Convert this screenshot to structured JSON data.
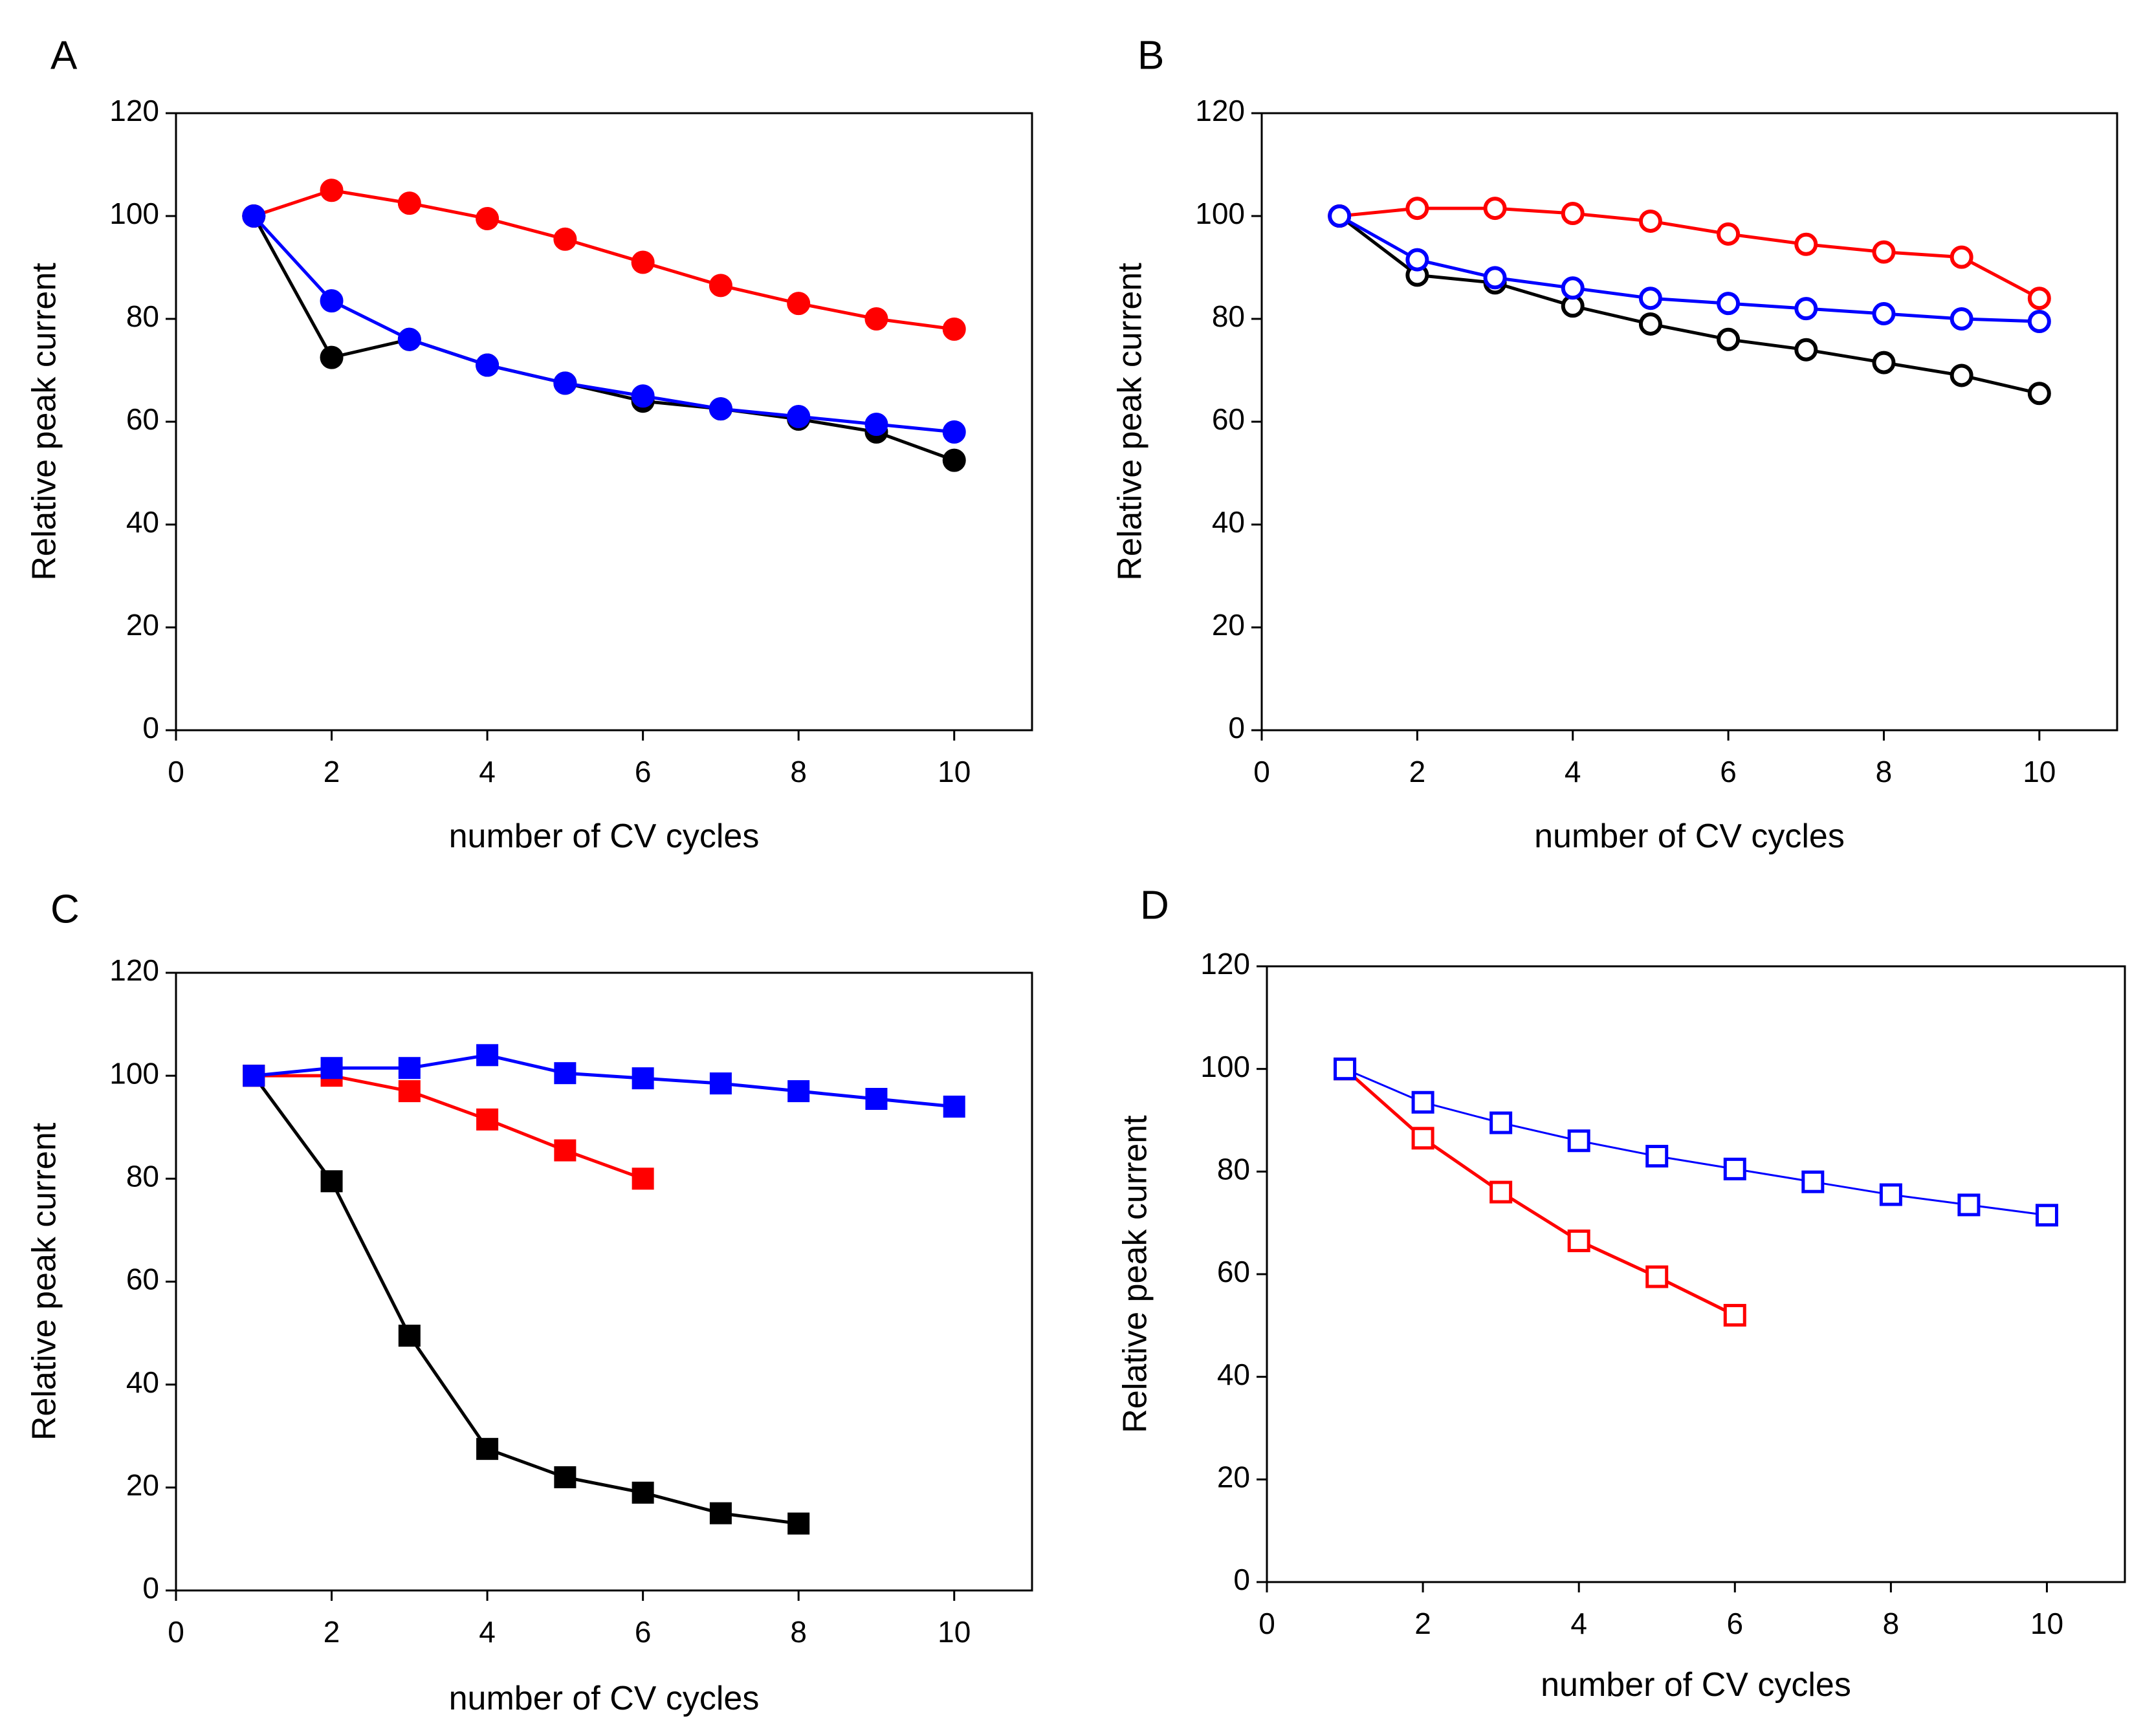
{
  "figure": {
    "panels": [
      "A",
      "B",
      "C",
      "D"
    ]
  },
  "chart_data": [
    {
      "panel": "A",
      "type": "line",
      "title": "",
      "xlabel": "number of CV cycles",
      "ylabel": "Relative peak current",
      "xlim": [
        0,
        11
      ],
      "ylim": [
        0,
        120
      ],
      "xticks": [
        0,
        2,
        4,
        6,
        8,
        10
      ],
      "yticks": [
        0,
        20,
        40,
        60,
        80,
        100,
        120
      ],
      "marker": "circle",
      "filled": true,
      "series": [
        {
          "name": "black",
          "color": "#000000",
          "x": [
            1,
            2,
            3,
            4,
            5,
            6,
            7,
            8,
            9,
            10
          ],
          "values": [
            100,
            72.5,
            76,
            71,
            67.5,
            64,
            62.5,
            60.5,
            58,
            52.5
          ]
        },
        {
          "name": "red",
          "color": "#ff0000",
          "x": [
            1,
            2,
            3,
            4,
            5,
            6,
            7,
            8,
            9,
            10
          ],
          "values": [
            100,
            105,
            102.5,
            99.5,
            95.5,
            91,
            86.5,
            83,
            80,
            78
          ]
        },
        {
          "name": "blue",
          "color": "#0000ff",
          "x": [
            1,
            2,
            3,
            4,
            5,
            6,
            7,
            8,
            9,
            10
          ],
          "values": [
            100,
            83.5,
            76,
            71,
            67.5,
            65,
            62.5,
            61,
            59.5,
            58
          ]
        }
      ]
    },
    {
      "panel": "B",
      "type": "line",
      "title": "",
      "xlabel": "number of CV cycles",
      "ylabel": "Relative peak current",
      "xlim": [
        0,
        11
      ],
      "ylim": [
        0,
        120
      ],
      "xticks": [
        0,
        2,
        4,
        6,
        8,
        10
      ],
      "yticks": [
        0,
        20,
        40,
        60,
        80,
        100,
        120
      ],
      "marker": "circle",
      "filled": false,
      "series": [
        {
          "name": "black",
          "color": "#000000",
          "x": [
            1,
            2,
            3,
            4,
            5,
            6,
            7,
            8,
            9,
            10
          ],
          "values": [
            100,
            88.5,
            87,
            82.5,
            79,
            76,
            74,
            71.5,
            69,
            65.5
          ]
        },
        {
          "name": "red",
          "color": "#ff0000",
          "x": [
            1,
            2,
            3,
            4,
            5,
            6,
            7,
            8,
            9,
            10
          ],
          "values": [
            100,
            101.5,
            101.5,
            100.5,
            99,
            96.5,
            94.5,
            93,
            92,
            84
          ]
        },
        {
          "name": "blue",
          "color": "#0000ff",
          "x": [
            1,
            2,
            3,
            4,
            5,
            6,
            7,
            8,
            9,
            10
          ],
          "values": [
            100,
            91.5,
            88,
            86,
            84,
            83,
            82,
            81,
            80,
            79.5
          ]
        }
      ]
    },
    {
      "panel": "C",
      "type": "line",
      "title": "",
      "xlabel": "number of CV cycles",
      "ylabel": "Relative peak current",
      "xlim": [
        0,
        11
      ],
      "ylim": [
        0,
        120
      ],
      "xticks": [
        0,
        2,
        4,
        6,
        8,
        10
      ],
      "yticks": [
        0,
        20,
        40,
        60,
        80,
        100,
        120
      ],
      "marker": "square",
      "filled": true,
      "series": [
        {
          "name": "black",
          "color": "#000000",
          "x": [
            1,
            2,
            3,
            4,
            5,
            6,
            7,
            8
          ],
          "values": [
            100,
            79.5,
            49.5,
            27.5,
            22,
            19,
            15,
            13
          ]
        },
        {
          "name": "red",
          "color": "#ff0000",
          "x": [
            1,
            2,
            3,
            4,
            5,
            6
          ],
          "values": [
            100,
            100,
            97,
            91.5,
            85.5,
            80
          ]
        },
        {
          "name": "blue",
          "color": "#0000ff",
          "x": [
            1,
            2,
            3,
            4,
            5,
            6,
            7,
            8,
            9,
            10
          ],
          "values": [
            100,
            101.5,
            101.5,
            104,
            100.5,
            99.5,
            98.5,
            97,
            95.5,
            94
          ]
        }
      ]
    },
    {
      "panel": "D",
      "type": "line",
      "title": "",
      "xlabel": "number of CV cycles",
      "ylabel": "Relative peak current",
      "xlim": [
        0,
        11
      ],
      "ylim": [
        0,
        120
      ],
      "xticks": [
        0,
        2,
        4,
        6,
        8,
        10
      ],
      "yticks": [
        0,
        20,
        40,
        60,
        80,
        100,
        120
      ],
      "marker": "square",
      "filled": false,
      "series": [
        {
          "name": "black",
          "color": "#000000",
          "x": [
            1
          ],
          "values": [
            100
          ]
        },
        {
          "name": "red",
          "color": "#ff0000",
          "x": [
            1,
            2,
            3,
            4,
            5,
            6
          ],
          "values": [
            100,
            86.5,
            76,
            66.5,
            59.5,
            52
          ]
        },
        {
          "name": "blue",
          "color": "#0000ff",
          "x": [
            1,
            2,
            3,
            4,
            5,
            6,
            7,
            8,
            9,
            10
          ],
          "values": [
            100,
            93.5,
            89.5,
            86,
            83,
            80.5,
            78,
            75.5,
            73.5,
            71.5
          ]
        }
      ]
    }
  ]
}
